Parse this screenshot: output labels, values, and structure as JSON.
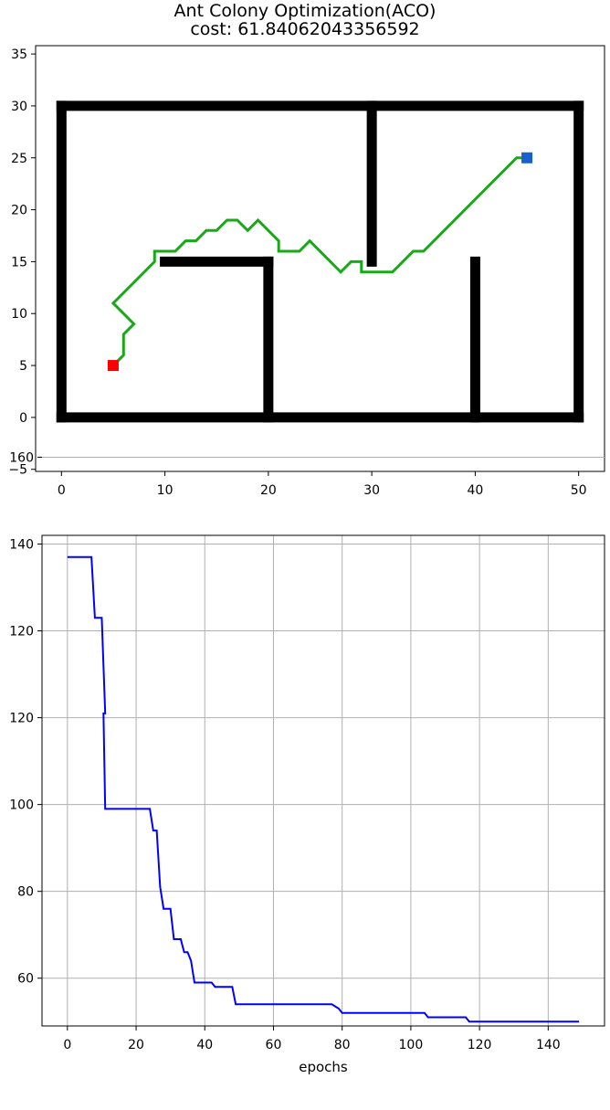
{
  "chart_data": [
    {
      "type": "line",
      "title": "Ant Colony Optimization(ACO)",
      "subtitle": "cost: 61.84062043356592",
      "xlim": [
        -2.5,
        52.5
      ],
      "ylim": [
        -5.2,
        35.8
      ],
      "x_ticks": [
        "0",
        "10",
        "20",
        "30",
        "40",
        "50"
      ],
      "y_ticks": [
        "−5",
        "0",
        "5",
        "10",
        "15",
        "20",
        "25",
        "30",
        "35"
      ],
      "grid": false,
      "obstacles": [
        {
          "x1": 0,
          "y1": 0,
          "x2": 50,
          "y2": 0
        },
        {
          "x1": 0,
          "y1": 30,
          "x2": 50,
          "y2": 30
        },
        {
          "x1": 0,
          "y1": 0,
          "x2": 0,
          "y2": 30
        },
        {
          "x1": 50,
          "y1": 0,
          "x2": 50,
          "y2": 30
        },
        {
          "x1": 10,
          "y1": 15,
          "x2": 20,
          "y2": 15
        },
        {
          "x1": 20,
          "y1": 0,
          "x2": 20,
          "y2": 15
        },
        {
          "x1": 30,
          "y1": 15,
          "x2": 30,
          "y2": 30
        },
        {
          "x1": 40,
          "y1": 0,
          "x2": 40,
          "y2": 15
        }
      ],
      "start": {
        "x": 5,
        "y": 5,
        "color": "#ff0000"
      },
      "goal": {
        "x": 45,
        "y": 25,
        "color": "#1a5fd0"
      },
      "path_color": "#18a818",
      "path": [
        [
          5,
          5
        ],
        [
          6,
          6
        ],
        [
          6,
          8
        ],
        [
          7,
          9
        ],
        [
          5,
          11
        ],
        [
          9,
          15
        ],
        [
          9,
          16
        ],
        [
          11,
          16
        ],
        [
          12,
          17
        ],
        [
          13,
          17
        ],
        [
          14,
          18
        ],
        [
          15,
          18
        ],
        [
          16,
          19
        ],
        [
          17,
          19
        ],
        [
          18,
          18
        ],
        [
          19,
          19
        ],
        [
          20,
          18
        ],
        [
          21,
          17
        ],
        [
          21,
          16
        ],
        [
          23,
          16
        ],
        [
          24,
          17
        ],
        [
          25,
          16
        ],
        [
          26,
          15
        ],
        [
          27,
          14
        ],
        [
          28,
          15
        ],
        [
          29,
          15
        ],
        [
          29,
          14
        ],
        [
          32,
          14
        ],
        [
          33,
          15
        ],
        [
          34,
          16
        ],
        [
          35,
          16
        ],
        [
          44,
          25
        ],
        [
          45,
          25
        ]
      ]
    },
    {
      "type": "line",
      "xlabel": "epochs",
      "xlim": [
        -7.4,
        156.4
      ],
      "ylim": [
        49.0,
        162.0
      ],
      "x_ticks": [
        "0",
        "20",
        "40",
        "60",
        "80",
        "100",
        "120",
        "140"
      ],
      "y_ticks": [
        "60",
        "80",
        "100",
        "120",
        "120",
        "140",
        "160"
      ],
      "grid": true,
      "line_color": "#0000ff",
      "points": [
        [
          0,
          157
        ],
        [
          7,
          157
        ],
        [
          8,
          143
        ],
        [
          10,
          143
        ],
        [
          11,
          121
        ],
        [
          10.5,
          121
        ],
        [
          11,
          99
        ],
        [
          24,
          99
        ],
        [
          25,
          94
        ],
        [
          26,
          94
        ],
        [
          27,
          81
        ],
        [
          28,
          76
        ],
        [
          30,
          76
        ],
        [
          31,
          69
        ],
        [
          33,
          69
        ],
        [
          34,
          66
        ],
        [
          35,
          66
        ],
        [
          36,
          64
        ],
        [
          37,
          59
        ],
        [
          42,
          59
        ],
        [
          43,
          58
        ],
        [
          48,
          58
        ],
        [
          49,
          54
        ],
        [
          77,
          54
        ],
        [
          79,
          53
        ],
        [
          80,
          52
        ],
        [
          104,
          52
        ],
        [
          105,
          51
        ],
        [
          116,
          51
        ],
        [
          117,
          50
        ],
        [
          149,
          50
        ]
      ]
    }
  ]
}
